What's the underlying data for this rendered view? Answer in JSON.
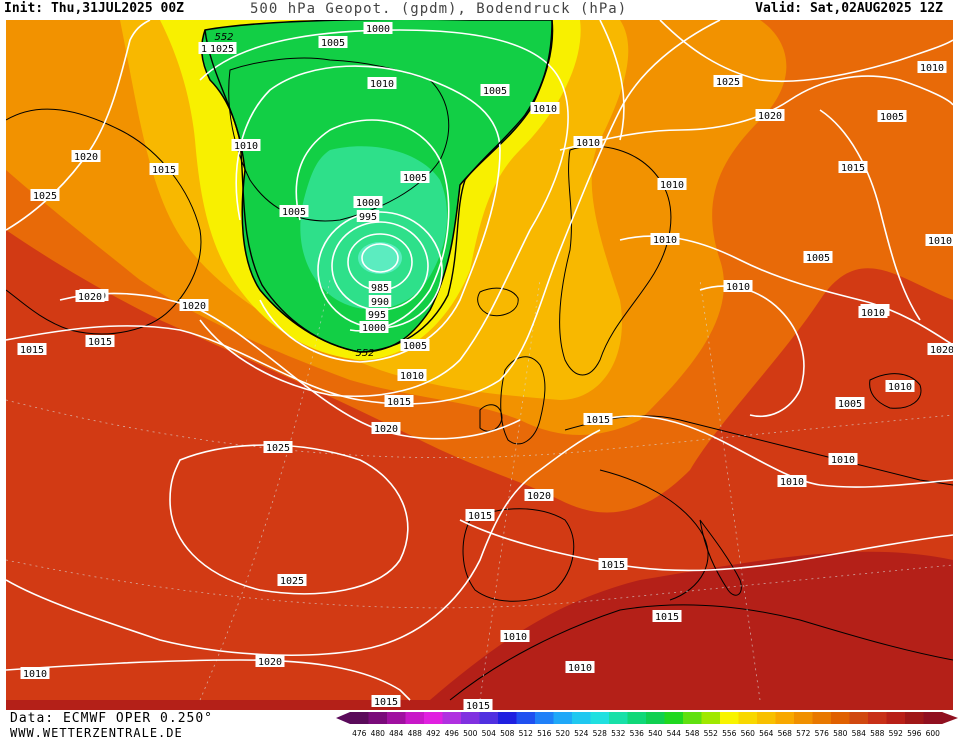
{
  "header": {
    "init": "Init: Thu,31JUL2025 00Z",
    "title": "500 hPa Geopot. (gpdm), Bodendruck (hPa)",
    "valid": "Valid: Sat,02AUG2025 12Z"
  },
  "footer": {
    "data_source": "Data: ECMWF OPER 0.250°",
    "website": "WWW.WETTERZENTRALE.DE"
  },
  "colors": {
    "green_low": "#0fce3c",
    "yellow": "#f8f400",
    "orange": "#f8a000",
    "dark_orange": "#e07000",
    "red": "#c82818",
    "dark_red": "#a01818",
    "contour": "#ffffff",
    "coastline": "#000000"
  },
  "map": {
    "geopotential_contour_labels": [
      "552",
      "552"
    ],
    "pressure_labels": [
      "1000",
      "1005",
      "1010",
      "1010",
      "1005",
      "1010",
      "1010",
      "1005",
      "1005",
      "1000",
      "995",
      "985",
      "990",
      "995",
      "1000",
      "1005",
      "1010",
      "1015",
      "1020",
      "1025",
      "1020",
      "1015",
      "1020",
      "1020",
      "1015",
      "1015",
      "1025",
      "1025",
      "1020",
      "1015",
      "1020",
      "1010",
      "1015",
      "1010",
      "1015",
      "1015",
      "1010",
      "1015",
      "1025",
      "1020",
      "1010",
      "1005",
      "1010",
      "1010",
      "1010",
      "1005",
      "1005",
      "1005",
      "1010",
      "1015",
      "1010",
      "1010",
      "1010",
      "1015",
      "1010",
      "1020",
      "1020",
      "1015",
      "1025"
    ]
  },
  "color_scale": {
    "ticks": [
      "476",
      "480",
      "484",
      "488",
      "492",
      "496",
      "500",
      "504",
      "508",
      "512",
      "516",
      "520",
      "524",
      "528",
      "532",
      "536",
      "540",
      "544",
      "548",
      "552",
      "556",
      "560",
      "564",
      "568",
      "572",
      "576",
      "580",
      "584",
      "588",
      "592",
      "596",
      "600"
    ],
    "colors": [
      "#5a0a5a",
      "#7a0a7a",
      "#a010a0",
      "#c818c8",
      "#e020e0",
      "#b030e0",
      "#8030e0",
      "#5030e0",
      "#2020e0",
      "#2050f0",
      "#2080f8",
      "#20a8f8",
      "#20c8f0",
      "#20e0e0",
      "#18e0a8",
      "#10d878",
      "#10d050",
      "#20d820",
      "#60e010",
      "#a0e800",
      "#f8f400",
      "#f8d800",
      "#f8c000",
      "#f8a800",
      "#f09000",
      "#e87800",
      "#e06000",
      "#d04810",
      "#c83018",
      "#b82018",
      "#a01818",
      "#901020"
    ]
  }
}
